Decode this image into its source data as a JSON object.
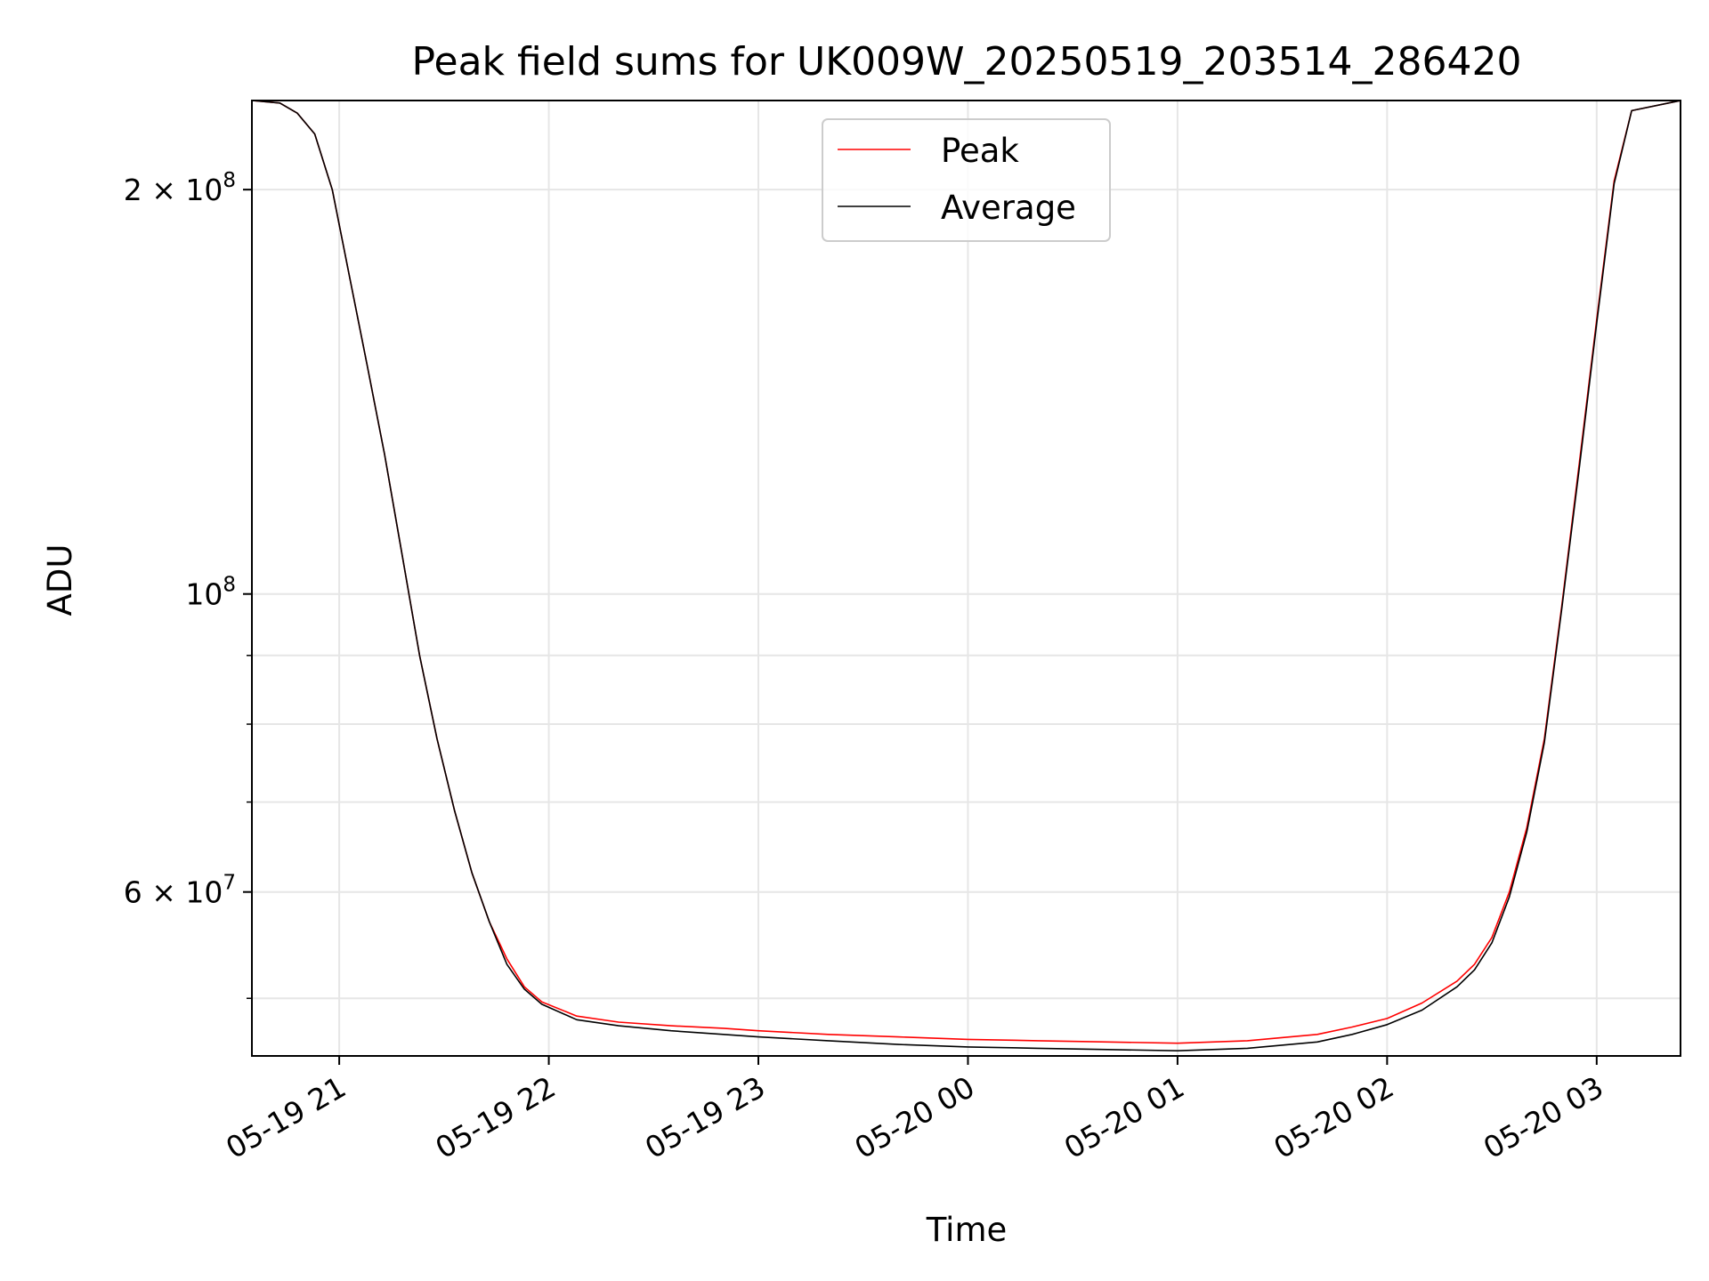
{
  "chart_data": {
    "type": "line",
    "title": "Peak field sums for UK009W_20250519_203514_286420",
    "xlabel": "Time",
    "ylabel": "ADU",
    "x_scale": "time",
    "y_scale": "log",
    "xlim": [
      "2025-05-19 20:35",
      "2025-05-20 03:24"
    ],
    "ylim": [
      45300000,
      233000000
    ],
    "grid": true,
    "legend_position": "upper center",
    "x_ticks": [
      {
        "value": "2025-05-19 21:00",
        "label": "05-19 21"
      },
      {
        "value": "2025-05-19 22:00",
        "label": "05-19 22"
      },
      {
        "value": "2025-05-19 23:00",
        "label": "05-19 23"
      },
      {
        "value": "2025-05-20 00:00",
        "label": "05-20 00"
      },
      {
        "value": "2025-05-20 01:00",
        "label": "05-20 01"
      },
      {
        "value": "2025-05-20 02:00",
        "label": "05-20 02"
      },
      {
        "value": "2025-05-20 03:00",
        "label": "05-20 03"
      }
    ],
    "y_major_ticks": [
      {
        "value": 60000000,
        "mantissa": "6",
        "exponent": "7"
      },
      {
        "value": 100000000,
        "mantissa": "",
        "exponent": "8"
      },
      {
        "value": 200000000,
        "mantissa": "2",
        "exponent": "8"
      }
    ],
    "y_minor_ticks": [
      50000000,
      70000000,
      80000000,
      90000000
    ],
    "series": [
      {
        "name": "Peak",
        "color": "#ff0000",
        "x": [
          "2025-05-19 20:35",
          "2025-05-19 20:43",
          "2025-05-19 20:48",
          "2025-05-19 20:53",
          "2025-05-19 20:58",
          "2025-05-19 21:03",
          "2025-05-19 21:08",
          "2025-05-19 21:13",
          "2025-05-19 21:18",
          "2025-05-19 21:23",
          "2025-05-19 21:28",
          "2025-05-19 21:33",
          "2025-05-19 21:38",
          "2025-05-19 21:43",
          "2025-05-19 21:48",
          "2025-05-19 21:53",
          "2025-05-19 21:58",
          "2025-05-19 22:08",
          "2025-05-19 22:20",
          "2025-05-19 22:35",
          "2025-05-19 22:50",
          "2025-05-19 23:00",
          "2025-05-19 23:20",
          "2025-05-19 23:40",
          "2025-05-20 00:00",
          "2025-05-20 00:20",
          "2025-05-20 00:40",
          "2025-05-20 01:00",
          "2025-05-20 01:20",
          "2025-05-20 01:40",
          "2025-05-20 01:50",
          "2025-05-20 02:00",
          "2025-05-20 02:10",
          "2025-05-20 02:20",
          "2025-05-20 02:25",
          "2025-05-20 02:30",
          "2025-05-20 02:35",
          "2025-05-20 02:40",
          "2025-05-20 02:45",
          "2025-05-20 02:50",
          "2025-05-20 02:55",
          "2025-05-20 03:00",
          "2025-05-20 03:05",
          "2025-05-20 03:10",
          "2025-05-20 03:24"
        ],
        "values": [
          233000000,
          232000000,
          228000000,
          220000000,
          200000000,
          172000000,
          148000000,
          127000000,
          107000000,
          90000000,
          78000000,
          69000000,
          62000000,
          57000000,
          53500000,
          51000000,
          49700000,
          48500000,
          48000000,
          47700000,
          47500000,
          47300000,
          47000000,
          46800000,
          46600000,
          46500000,
          46400000,
          46300000,
          46500000,
          47000000,
          47600000,
          48300000,
          49600000,
          51500000,
          53000000,
          55500000,
          60000000,
          67000000,
          78000000,
          98000000,
          125000000,
          160000000,
          203000000,
          229000000,
          233000000
        ]
      },
      {
        "name": "Average",
        "color": "#000000",
        "x": [
          "2025-05-19 20:35",
          "2025-05-19 20:43",
          "2025-05-19 20:48",
          "2025-05-19 20:53",
          "2025-05-19 20:58",
          "2025-05-19 21:03",
          "2025-05-19 21:08",
          "2025-05-19 21:13",
          "2025-05-19 21:18",
          "2025-05-19 21:23",
          "2025-05-19 21:28",
          "2025-05-19 21:33",
          "2025-05-19 21:38",
          "2025-05-19 21:43",
          "2025-05-19 21:48",
          "2025-05-19 21:53",
          "2025-05-19 21:58",
          "2025-05-19 22:08",
          "2025-05-19 22:20",
          "2025-05-19 22:35",
          "2025-05-19 22:50",
          "2025-05-19 23:00",
          "2025-05-19 23:20",
          "2025-05-19 23:40",
          "2025-05-20 00:00",
          "2025-05-20 00:20",
          "2025-05-20 00:40",
          "2025-05-20 01:00",
          "2025-05-20 01:20",
          "2025-05-20 01:40",
          "2025-05-20 01:50",
          "2025-05-20 02:00",
          "2025-05-20 02:10",
          "2025-05-20 02:20",
          "2025-05-20 02:25",
          "2025-05-20 02:30",
          "2025-05-20 02:35",
          "2025-05-20 02:40",
          "2025-05-20 02:45",
          "2025-05-20 02:50",
          "2025-05-20 02:55",
          "2025-05-20 03:00",
          "2025-05-20 03:05",
          "2025-05-20 03:10",
          "2025-05-20 03:24"
        ],
        "values": [
          233000000,
          232000000,
          228000000,
          220000000,
          200000000,
          172000000,
          148000000,
          127000000,
          107000000,
          90000000,
          78000000,
          69000000,
          62000000,
          57000000,
          53000000,
          50800000,
          49500000,
          48200000,
          47700000,
          47300000,
          47000000,
          46800000,
          46500000,
          46200000,
          46000000,
          45900000,
          45800000,
          45700000,
          45900000,
          46400000,
          47000000,
          47800000,
          49000000,
          51000000,
          52500000,
          55000000,
          59500000,
          66500000,
          77500000,
          97500000,
          124000000,
          159000000,
          202000000,
          229000000,
          233000000
        ]
      }
    ]
  }
}
